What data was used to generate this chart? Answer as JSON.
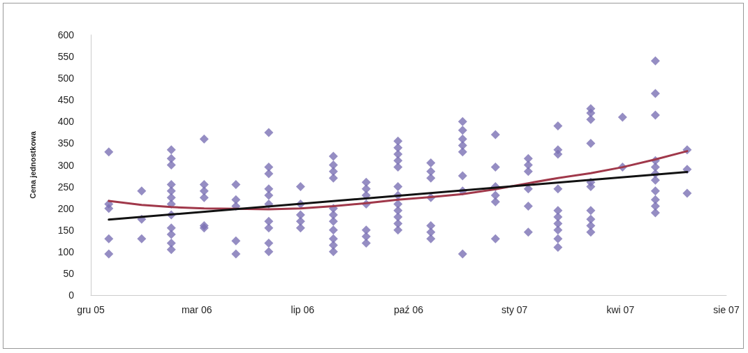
{
  "chart_data": {
    "type": "scatter",
    "ylabel": "Cena jednostkowa",
    "xlim": [
      "2005-12-15",
      "2007-08-07"
    ],
    "xticks": [
      {
        "value": "2005-12-15",
        "label": "gru 05"
      },
      {
        "value": "2006-03-25",
        "label": "mar 06"
      },
      {
        "value": "2006-07-03",
        "label": "lip 06"
      },
      {
        "value": "2006-10-11",
        "label": "paź 06"
      },
      {
        "value": "2007-01-19",
        "label": "sty 07"
      },
      {
        "value": "2007-04-29",
        "label": "kwi 07"
      },
      {
        "value": "2007-08-07",
        "label": "sie 07"
      }
    ],
    "ylim": [
      0,
      600
    ],
    "yticks": [
      0,
      50,
      100,
      150,
      200,
      250,
      300,
      350,
      400,
      450,
      500,
      550,
      600
    ],
    "series": [
      {
        "marker": "diamond",
        "color": "#7a70b4",
        "x": [
          "2006-01",
          "2006-01",
          "2006-01",
          "2006-01",
          "2006-01",
          "2006-02",
          "2006-02",
          "2006-02",
          "2006-03",
          "2006-03",
          "2006-03",
          "2006-03",
          "2006-03",
          "2006-03",
          "2006-03",
          "2006-03",
          "2006-03",
          "2006-03",
          "2006-03",
          "2006-03",
          "2006-04",
          "2006-04",
          "2006-04",
          "2006-04",
          "2006-04",
          "2006-04",
          "2006-05",
          "2006-05",
          "2006-05",
          "2006-05",
          "2006-05",
          "2006-06",
          "2006-06",
          "2006-06",
          "2006-06",
          "2006-06",
          "2006-06",
          "2006-06",
          "2006-06",
          "2006-06",
          "2006-06",
          "2006-07",
          "2006-07",
          "2006-07",
          "2006-07",
          "2006-07",
          "2006-08",
          "2006-08",
          "2006-08",
          "2006-08",
          "2006-08",
          "2006-08",
          "2006-08",
          "2006-08",
          "2006-08",
          "2006-08",
          "2006-08",
          "2006-09",
          "2006-09",
          "2006-09",
          "2006-09",
          "2006-09",
          "2006-09",
          "2006-09",
          "2006-10",
          "2006-10",
          "2006-10",
          "2006-10",
          "2006-10",
          "2006-10",
          "2006-10",
          "2006-10",
          "2006-10",
          "2006-10",
          "2006-10",
          "2006-10",
          "2006-11",
          "2006-11",
          "2006-11",
          "2006-11",
          "2006-11",
          "2006-11",
          "2006-11",
          "2006-12",
          "2006-12",
          "2006-12",
          "2006-12",
          "2006-12",
          "2006-12",
          "2006-12",
          "2006-12",
          "2007-01",
          "2007-01",
          "2007-01",
          "2007-01",
          "2007-01",
          "2007-01",
          "2007-02",
          "2007-02",
          "2007-02",
          "2007-02",
          "2007-02",
          "2007-02",
          "2007-03",
          "2007-03",
          "2007-03",
          "2007-03",
          "2007-03",
          "2007-03",
          "2007-03",
          "2007-03",
          "2007-03",
          "2007-03",
          "2007-04",
          "2007-04",
          "2007-04",
          "2007-04",
          "2007-04",
          "2007-04",
          "2007-04",
          "2007-04",
          "2007-04",
          "2007-04",
          "2007-05",
          "2007-05",
          "2007-06",
          "2007-06",
          "2007-06",
          "2007-06",
          "2007-06",
          "2007-06",
          "2007-06",
          "2007-06",
          "2007-06",
          "2007-06",
          "2007-06",
          "2007-07",
          "2007-07",
          "2007-07"
        ],
        "values": [
          330,
          210,
          200,
          130,
          95,
          240,
          175,
          130,
          335,
          315,
          300,
          255,
          240,
          225,
          210,
          185,
          155,
          140,
          120,
          105,
          360,
          255,
          240,
          225,
          160,
          155,
          255,
          220,
          205,
          125,
          95,
          375,
          295,
          280,
          245,
          230,
          210,
          170,
          155,
          120,
          100,
          250,
          210,
          185,
          170,
          155,
          320,
          300,
          285,
          270,
          200,
          185,
          170,
          150,
          130,
          115,
          100,
          260,
          245,
          230,
          210,
          150,
          135,
          120,
          355,
          340,
          325,
          310,
          295,
          250,
          230,
          210,
          195,
          180,
          165,
          150,
          305,
          285,
          270,
          225,
          160,
          145,
          130,
          400,
          380,
          360,
          345,
          330,
          275,
          240,
          95,
          370,
          295,
          250,
          230,
          215,
          130,
          315,
          300,
          285,
          245,
          205,
          145,
          390,
          335,
          325,
          245,
          195,
          180,
          165,
          150,
          130,
          110,
          430,
          420,
          405,
          350,
          260,
          250,
          195,
          175,
          160,
          145,
          410,
          295,
          540,
          465,
          415,
          310,
          295,
          280,
          265,
          240,
          220,
          205,
          190,
          335,
          290,
          235
        ]
      },
      {
        "type": "line",
        "marker": "none",
        "color": "#a0384a",
        "x": [
          "2006-01",
          "2006-02",
          "2006-03",
          "2006-04",
          "2006-05",
          "2006-06",
          "2006-07",
          "2006-08",
          "2006-09",
          "2006-10",
          "2006-11",
          "2006-12",
          "2007-01",
          "2007-02",
          "2007-03",
          "2007-04",
          "2007-05",
          "2007-06",
          "2007-07"
        ],
        "values": [
          217,
          208,
          203,
          200,
          199,
          198,
          200,
          205,
          212,
          220,
          226,
          233,
          244,
          258,
          270,
          281,
          295,
          313,
          332
        ]
      },
      {
        "type": "line",
        "marker": "none",
        "color": "#111111",
        "x": [
          "2006-01",
          "2007-07"
        ],
        "values": [
          174,
          284
        ]
      }
    ]
  }
}
